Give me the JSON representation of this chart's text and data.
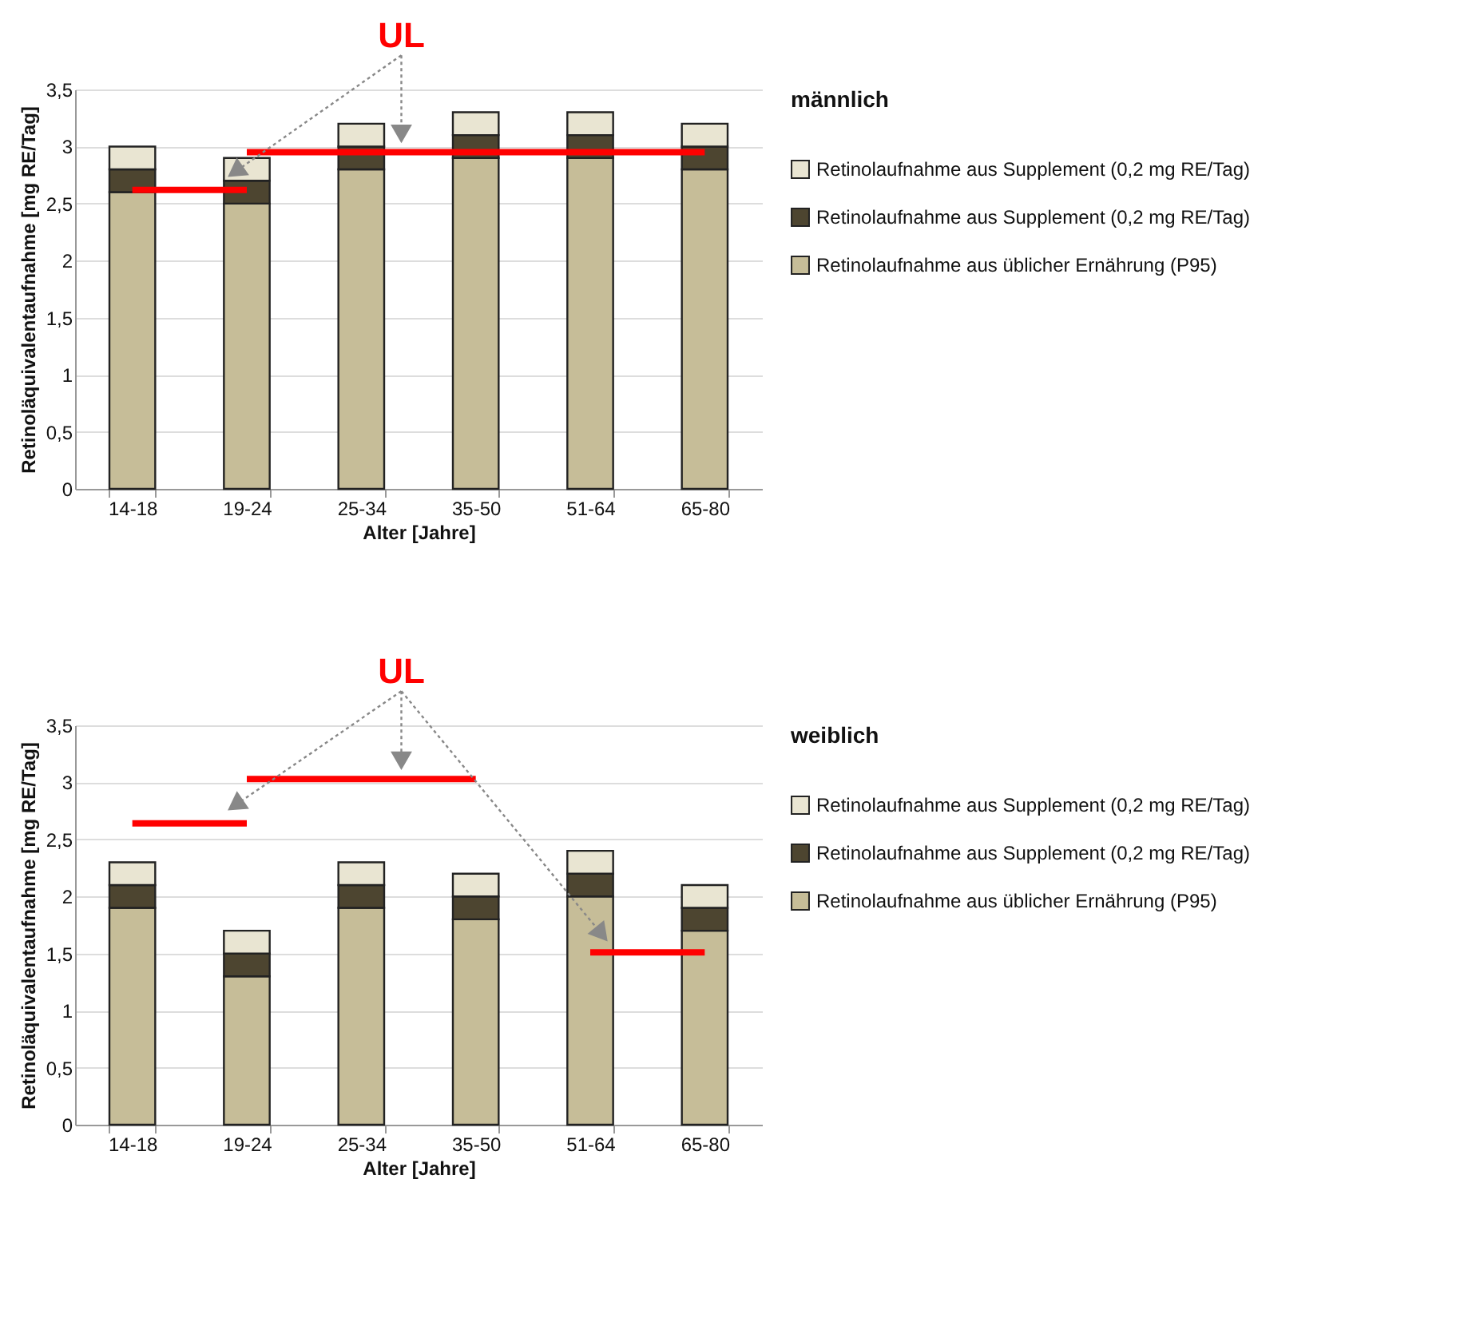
{
  "chart_data": [
    {
      "type": "bar",
      "stacked": true,
      "xlabel": "Alter [Jahre]",
      "ylabel": "Retinoläquivalentaufnahme [mg RE/Tag]",
      "legend_title": "männlich",
      "legend": "right",
      "grid": "y",
      "categories": [
        "14-18",
        "19-24",
        "25-34",
        "35-50",
        "51-64",
        "65-80"
      ],
      "ylim": [
        0,
        3.5
      ],
      "yticks": [
        0,
        {
          "value": 0.5,
          "label": "0,5"
        },
        1,
        {
          "value": 1.5,
          "label": "1,5"
        },
        2,
        {
          "value": 2.5,
          "label": "2,5"
        },
        3,
        {
          "value": 3.5,
          "label": "3,5"
        }
      ],
      "annotations": [
        "UL"
      ],
      "series": [
        {
          "name": "Retinolaufnahme aus üblicher Ernährung (P95)",
          "color": "#c6bd98",
          "values": [
            2.6,
            2.5,
            2.8,
            2.9,
            2.9,
            2.8
          ]
        },
        {
          "name": "Retinolaufnahme aus Supplement (0,2 mg RE/Tag)",
          "color": "#4d4530",
          "values": [
            0.2,
            0.2,
            0.2,
            0.2,
            0.2,
            0.2
          ]
        },
        {
          "name": "Retinolaufnahme aus Supplement (0,2 mg RE/Tag)",
          "color": "#e9e5d2",
          "values": [
            0.2,
            0.2,
            0.2,
            0.2,
            0.2,
            0.2
          ]
        },
        {
          "type": "line",
          "color": "#ff0000",
          "values": [
            2.62,
            2.62,
            null,
            null,
            null,
            null
          ]
        },
        {
          "type": "line",
          "color": "#ff0000",
          "values": [
            null,
            2.95,
            2.95,
            2.95,
            2.95,
            2.95
          ]
        }
      ]
    },
    {
      "type": "bar",
      "stacked": true,
      "xlabel": "Alter [Jahre]",
      "ylabel": "Retinoläquivalentaufnahme [mg RE/Tag]",
      "legend_title": "weiblich",
      "legend": "right",
      "grid": "y",
      "categories": [
        "14-18",
        "19-24",
        "25-34",
        "35-50",
        "51-64",
        "65-80"
      ],
      "ylim": [
        0,
        3.5
      ],
      "yticks": [
        0,
        {
          "value": 0.5,
          "label": "0,5"
        },
        1,
        {
          "value": 1.5,
          "label": "1,5"
        },
        2,
        {
          "value": 2.5,
          "label": "2,5"
        },
        3,
        {
          "value": 3.5,
          "label": "3,5"
        }
      ],
      "annotations": [
        "UL"
      ],
      "series": [
        {
          "name": "Retinolaufnahme aus üblicher Ernährung (P95)",
          "color": "#c6bd98",
          "values": [
            1.9,
            1.3,
            1.9,
            1.8,
            2.0,
            1.7
          ]
        },
        {
          "name": "Retinolaufnahme aus Supplement (0,2 mg RE/Tag)",
          "color": "#4d4530",
          "values": [
            0.2,
            0.2,
            0.2,
            0.2,
            0.2,
            0.2
          ]
        },
        {
          "name": "Retinolaufnahme aus Supplement (0,2 mg RE/Tag)",
          "color": "#e9e5d2",
          "values": [
            0.2,
            0.2,
            0.2,
            0.2,
            0.2,
            0.2
          ]
        },
        {
          "type": "line",
          "color": "#ff0000",
          "values": [
            2.64,
            2.64,
            null,
            null,
            null,
            null
          ]
        },
        {
          "type": "line",
          "color": "#ff0000",
          "values": [
            null,
            3.03,
            3.03,
            3.03,
            null,
            null
          ]
        },
        {
          "type": "line",
          "color": "#ff0000",
          "values": [
            null,
            null,
            null,
            null,
            1.51,
            1.51
          ]
        }
      ]
    }
  ]
}
